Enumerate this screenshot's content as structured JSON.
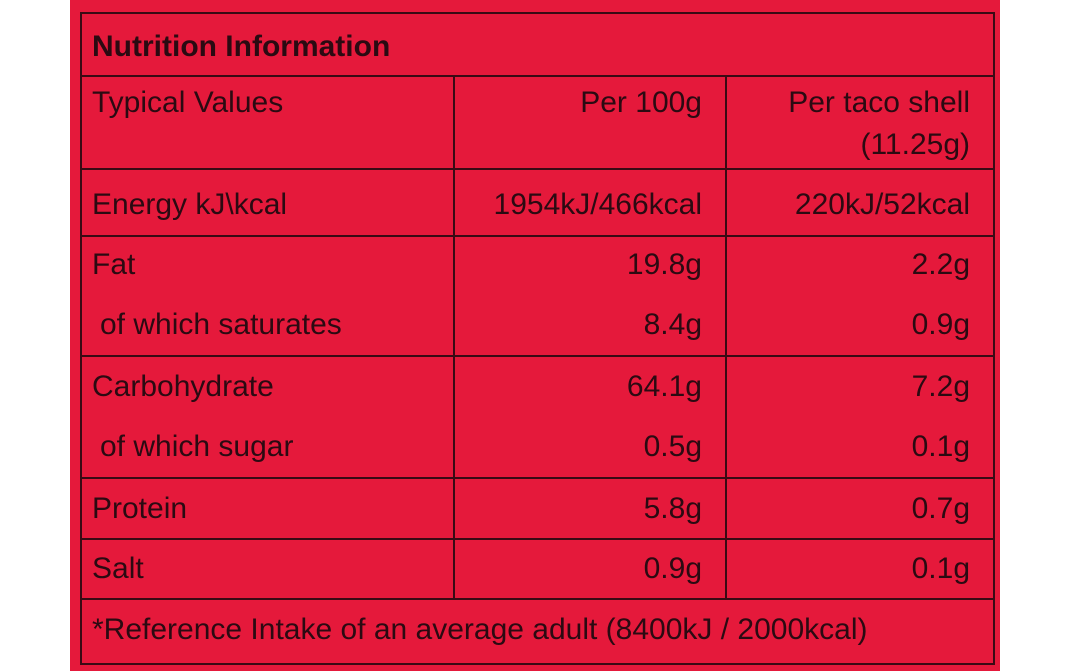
{
  "title": "Nutrition Information",
  "header": {
    "label": "Typical Values",
    "per_100g": "Per 100g",
    "per_serving": [
      "Per taco shell",
      "(11.25g)"
    ]
  },
  "rows": [
    [
      "Energy kJ\\kcal",
      "1954kJ/466kcal",
      "220kJ/52kcal"
    ],
    [
      "Fat",
      "19.8g",
      "2.2g"
    ],
    [
      "of which saturates",
      "8.4g",
      "0.9g"
    ],
    [
      "Carbohydrate",
      "64.1g",
      "7.2g"
    ],
    [
      "of which sugar",
      "0.5g",
      "0.1g"
    ],
    [
      "Protein",
      "5.8g",
      "0.7g"
    ],
    [
      "Salt",
      "0.9g",
      "0.1g"
    ]
  ],
  "footnote": "*Reference Intake of an average adult (8400kJ / 2000kcal)"
}
